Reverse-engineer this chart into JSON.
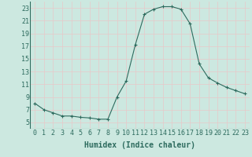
{
  "x": [
    0,
    1,
    2,
    3,
    4,
    5,
    6,
    7,
    8,
    9,
    10,
    11,
    12,
    13,
    14,
    15,
    16,
    17,
    18,
    19,
    20,
    21,
    22,
    23
  ],
  "y": [
    8,
    7,
    6.5,
    6,
    6,
    5.8,
    5.7,
    5.5,
    5.5,
    9,
    11.5,
    17.2,
    22,
    22.8,
    23.2,
    23.2,
    22.8,
    20.5,
    14.2,
    12,
    11.2,
    10.5,
    10,
    9.5
  ],
  "line_color": "#2d6b5e",
  "marker": "+",
  "marker_size": 3,
  "marker_linewidth": 0.8,
  "line_width": 0.8,
  "bg_color": "#cce8e0",
  "grid_color": "#b0d8ce",
  "xlabel": "Humidex (Indice chaleur)",
  "xlabel_fontsize": 7,
  "tick_fontsize": 6,
  "ylim": [
    4,
    24
  ],
  "xlim": [
    -0.5,
    23.5
  ],
  "yticks": [
    5,
    7,
    9,
    11,
    13,
    15,
    17,
    19,
    21,
    23
  ],
  "xticks": [
    0,
    1,
    2,
    3,
    4,
    5,
    6,
    7,
    8,
    9,
    10,
    11,
    12,
    13,
    14,
    15,
    16,
    17,
    18,
    19,
    20,
    21,
    22,
    23
  ]
}
